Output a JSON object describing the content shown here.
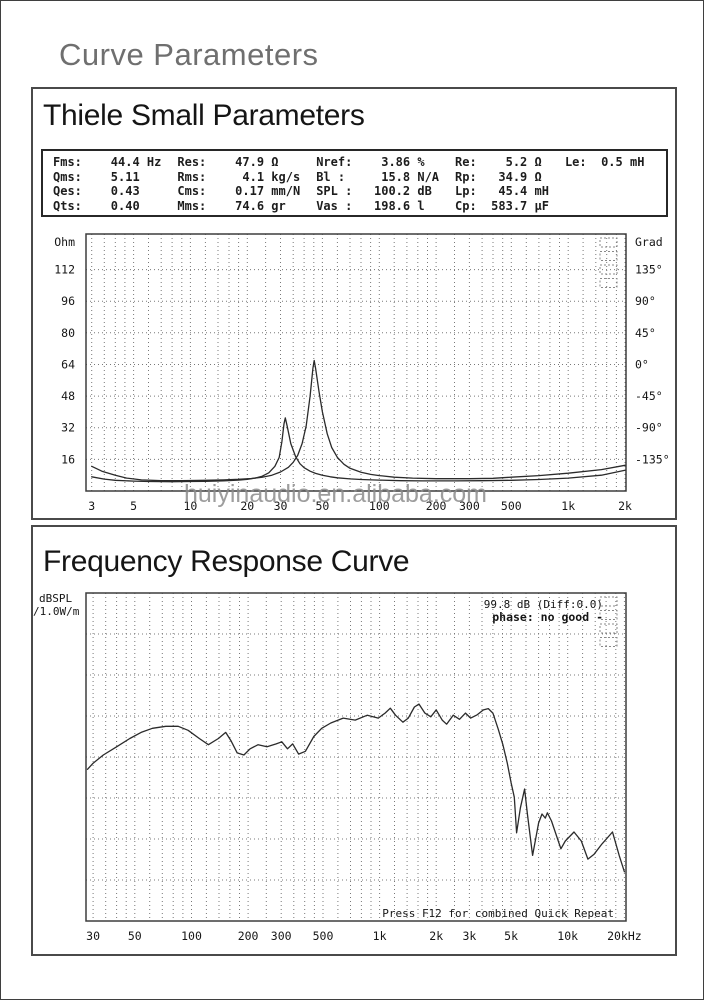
{
  "page": {
    "title": "Curve Parameters"
  },
  "watermark": {
    "text": "huiyinaudio.en.alibaba.com"
  },
  "sections": {
    "thiele": {
      "title": "Thiele Small Parameters"
    },
    "response": {
      "title": "Frequency Response Curve"
    }
  },
  "parameters": {
    "rows": [
      [
        {
          "label": "Fms:",
          "value": "44.4",
          "unit": "Hz"
        },
        {
          "label": "Res:",
          "value": "47.9",
          "unit": "Ω"
        },
        {
          "label": "Nref:",
          "value": "3.86",
          "unit": "%"
        },
        {
          "label": "Re:",
          "value": "5.2",
          "unit": "Ω"
        },
        {
          "label": "Le:",
          "value": "0.5",
          "unit": "mH"
        }
      ],
      [
        {
          "label": "Qms:",
          "value": "5.11",
          "unit": ""
        },
        {
          "label": "Rms:",
          "value": "4.1",
          "unit": "kg/s"
        },
        {
          "label": "Bl :",
          "value": "15.8",
          "unit": "N/A"
        },
        {
          "label": "Rp:",
          "value": "34.9",
          "unit": "Ω"
        },
        null
      ],
      [
        {
          "label": "Qes:",
          "value": "0.43",
          "unit": ""
        },
        {
          "label": "Cms:",
          "value": "0.17",
          "unit": "mm/N"
        },
        {
          "label": "SPL :",
          "value": "100.2",
          "unit": "dB"
        },
        {
          "label": "Lp:",
          "value": "45.4",
          "unit": "mH"
        },
        null
      ],
      [
        {
          "label": "Qts:",
          "value": "0.40",
          "unit": ""
        },
        {
          "label": "Mms:",
          "value": "74.6",
          "unit": "gr"
        },
        {
          "label": "Vas :",
          "value": "198.6",
          "unit": "l"
        },
        {
          "label": "Cp:",
          "value": "583.7",
          "unit": "µF"
        },
        null
      ]
    ]
  },
  "chart_data": [
    {
      "type": "line",
      "name": "impedance-phase-chart",
      "x_scale": "log",
      "x_range": [
        2.8,
        2024
      ],
      "x_ticks": [
        {
          "label": "3",
          "value": 3
        },
        {
          "label": "5",
          "value": 5
        },
        {
          "label": "10",
          "value": 10
        },
        {
          "label": "20",
          "value": 20
        },
        {
          "label": "30",
          "value": 30
        },
        {
          "label": "50",
          "value": 50
        },
        {
          "label": "100",
          "value": 100
        },
        {
          "label": "200",
          "value": 200
        },
        {
          "label": "300",
          "value": 300
        },
        {
          "label": "500",
          "value": 500
        },
        {
          "label": "1k",
          "value": 1000
        },
        {
          "label": "2k",
          "value": 2000
        }
      ],
      "y_range": [
        0,
        130
      ],
      "y_gridlines": [
        16,
        32,
        48,
        64,
        80,
        96,
        112
      ],
      "left_axis": {
        "title": "Ohm",
        "ticks": [
          {
            "label": "112",
            "value": 112
          },
          {
            "label": "96",
            "value": 96
          },
          {
            "label": "80",
            "value": 80
          },
          {
            "label": "64",
            "value": 64
          },
          {
            "label": "48",
            "value": 48
          },
          {
            "label": "32",
            "value": 32
          },
          {
            "label": "16",
            "value": 16
          }
        ]
      },
      "right_axis": {
        "title": "Grad",
        "ticks": [
          {
            "label": "135°",
            "value": 112
          },
          {
            "label": "90°",
            "value": 96
          },
          {
            "label": "45°",
            "value": 80
          },
          {
            "label": "0°",
            "value": 64
          },
          {
            "label": "-45°",
            "value": 48
          },
          {
            "label": "-90°",
            "value": 32
          },
          {
            "label": "-135°",
            "value": 16
          }
        ]
      },
      "corner_marks": true,
      "series": [
        {
          "name": "impedance-free-air",
          "points": [
            [
              3,
              12.5
            ],
            [
              3.4,
              10
            ],
            [
              4,
              8
            ],
            [
              4.6,
              6.5
            ],
            [
              5.5,
              5.6
            ],
            [
              7,
              5.2
            ],
            [
              9,
              5.2
            ],
            [
              12,
              5.4
            ],
            [
              15,
              5.6
            ],
            [
              18,
              5.9
            ],
            [
              21,
              6.3
            ],
            [
              24,
              7
            ],
            [
              27,
              8
            ],
            [
              30,
              9.6
            ],
            [
              33,
              12
            ],
            [
              35,
              14.5
            ],
            [
              37,
              18
            ],
            [
              39,
              24
            ],
            [
              41,
              33
            ],
            [
              43,
              48
            ],
            [
              44.5,
              62
            ],
            [
              45.2,
              66
            ],
            [
              46,
              62
            ],
            [
              48,
              50
            ],
            [
              50,
              40
            ],
            [
              53,
              29
            ],
            [
              56,
              22
            ],
            [
              60,
              17
            ],
            [
              65,
              13.5
            ],
            [
              70,
              11.5
            ],
            [
              80,
              9.5
            ],
            [
              90,
              8.4
            ],
            [
              100,
              7.8
            ],
            [
              120,
              7
            ],
            [
              150,
              6.5
            ],
            [
              200,
              6.2
            ],
            [
              300,
              6.2
            ],
            [
              400,
              6.4
            ],
            [
              500,
              7
            ],
            [
              700,
              7.8
            ],
            [
              1000,
              9
            ],
            [
              1500,
              10.8
            ],
            [
              2000,
              13
            ]
          ]
        },
        {
          "name": "impedance-added-mass",
          "points": [
            [
              3,
              7.2
            ],
            [
              3.5,
              6
            ],
            [
              4,
              5.4
            ],
            [
              5,
              5
            ],
            [
              6,
              4.8
            ],
            [
              8,
              4.7
            ],
            [
              10,
              4.8
            ],
            [
              12,
              4.9
            ],
            [
              15,
              5.1
            ],
            [
              18,
              5.5
            ],
            [
              20,
              5.9
            ],
            [
              22,
              6.5
            ],
            [
              24,
              7.5
            ],
            [
              26,
              9.2
            ],
            [
              28,
              12.5
            ],
            [
              29.5,
              17
            ],
            [
              30.5,
              25
            ],
            [
              31.3,
              34
            ],
            [
              31.8,
              37
            ],
            [
              32.5,
              33
            ],
            [
              34,
              24
            ],
            [
              36,
              17.5
            ],
            [
              38,
              13.8
            ],
            [
              40,
              11.8
            ],
            [
              43,
              10
            ],
            [
              46,
              8.9
            ],
            [
              50,
              8
            ],
            [
              55,
              7.2
            ],
            [
              60,
              6.7
            ],
            [
              70,
              6.1
            ],
            [
              80,
              5.8
            ],
            [
              100,
              5.5
            ],
            [
              130,
              5.2
            ],
            [
              170,
              5.1
            ],
            [
              250,
              5.1
            ],
            [
              350,
              5.2
            ],
            [
              500,
              5.4
            ],
            [
              700,
              5.8
            ],
            [
              1000,
              6.5
            ],
            [
              1500,
              8
            ],
            [
              2000,
              10.5
            ]
          ]
        }
      ]
    },
    {
      "type": "line",
      "name": "frequency-response-chart",
      "x_scale": "log",
      "x_range": [
        27.5,
        20400
      ],
      "x_ticks": [
        {
          "label": "30",
          "value": 30
        },
        {
          "label": "50",
          "value": 50
        },
        {
          "label": "100",
          "value": 100
        },
        {
          "label": "200",
          "value": 200
        },
        {
          "label": "300",
          "value": 300
        },
        {
          "label": "500",
          "value": 500
        },
        {
          "label": "1k",
          "value": 1000
        },
        {
          "label": "2k",
          "value": 2000
        },
        {
          "label": "3k",
          "value": 3000
        },
        {
          "label": "5k",
          "value": 5000
        },
        {
          "label": "10k",
          "value": 10000
        },
        {
          "label": "20kHz",
          "value": 20000
        }
      ],
      "y_range": [
        50,
        130
      ],
      "y_gridlines": [
        60,
        70,
        80,
        90,
        100,
        110,
        120
      ],
      "left_axis": {
        "title_lines": [
          "dBSPL",
          "/1.0W/m"
        ]
      },
      "annotations": {
        "readout": "99.8 dB (Diff:0.0)",
        "phase": "phase: no good -",
        "footer": "Press F12 for combined Quick Repeat"
      },
      "corner_marks": true,
      "series": [
        {
          "name": "spl-response",
          "points": [
            [
              28,
              87
            ],
            [
              30,
              88.5
            ],
            [
              34,
              90.5
            ],
            [
              40,
              92.5
            ],
            [
              47,
              94.5
            ],
            [
              54,
              96
            ],
            [
              62,
              97
            ],
            [
              73,
              97.5
            ],
            [
              85,
              97.5
            ],
            [
              96,
              96.5
            ],
            [
              110,
              94.5
            ],
            [
              123,
              93
            ],
            [
              139,
              94.5
            ],
            [
              152,
              96
            ],
            [
              162,
              94
            ],
            [
              175,
              91
            ],
            [
              190,
              90.5
            ],
            [
              205,
              92
            ],
            [
              226,
              93
            ],
            [
              252,
              92.5
            ],
            [
              282,
              93.2
            ],
            [
              302,
              93.7
            ],
            [
              324,
              92
            ],
            [
              345,
              93.2
            ],
            [
              371,
              90.7
            ],
            [
              403,
              91.4
            ],
            [
              447,
              95
            ],
            [
              492,
              97
            ],
            [
              550,
              98.3
            ],
            [
              640,
              99.5
            ],
            [
              742,
              99
            ],
            [
              860,
              100.2
            ],
            [
              984,
              99.5
            ],
            [
              1070,
              100.7
            ],
            [
              1140,
              101.9
            ],
            [
              1215,
              100.2
            ],
            [
              1330,
              98.5
            ],
            [
              1420,
              99.5
            ],
            [
              1530,
              102.2
            ],
            [
              1620,
              102.9
            ],
            [
              1740,
              100.7
            ],
            [
              1870,
              99.8
            ],
            [
              2000,
              101.5
            ],
            [
              2150,
              99
            ],
            [
              2270,
              98
            ],
            [
              2460,
              100.2
            ],
            [
              2660,
              99.2
            ],
            [
              2860,
              100.7
            ],
            [
              3050,
              99.5
            ],
            [
              3300,
              100.3
            ],
            [
              3560,
              101.5
            ],
            [
              3780,
              101.8
            ],
            [
              4000,
              100.7
            ],
            [
              4270,
              96.8
            ],
            [
              4530,
              92.9
            ],
            [
              4770,
              88.5
            ],
            [
              5000,
              83.7
            ],
            [
              5200,
              80.2
            ],
            [
              5350,
              71.5
            ],
            [
              5600,
              77.6
            ],
            [
              5900,
              82.2
            ],
            [
              6100,
              76.1
            ],
            [
              6500,
              66
            ],
            [
              7000,
              73.9
            ],
            [
              7300,
              76.1
            ],
            [
              7600,
              75.1
            ],
            [
              7800,
              76.4
            ],
            [
              8200,
              74.4
            ],
            [
              9200,
              67.6
            ],
            [
              9700,
              69.5
            ],
            [
              10800,
              71.7
            ],
            [
              11800,
              69.5
            ],
            [
              12800,
              65.1
            ],
            [
              13800,
              66.3
            ],
            [
              15200,
              68.8
            ],
            [
              17300,
              71.7
            ],
            [
              18800,
              65.9
            ],
            [
              20000,
              62
            ]
          ]
        }
      ]
    }
  ]
}
